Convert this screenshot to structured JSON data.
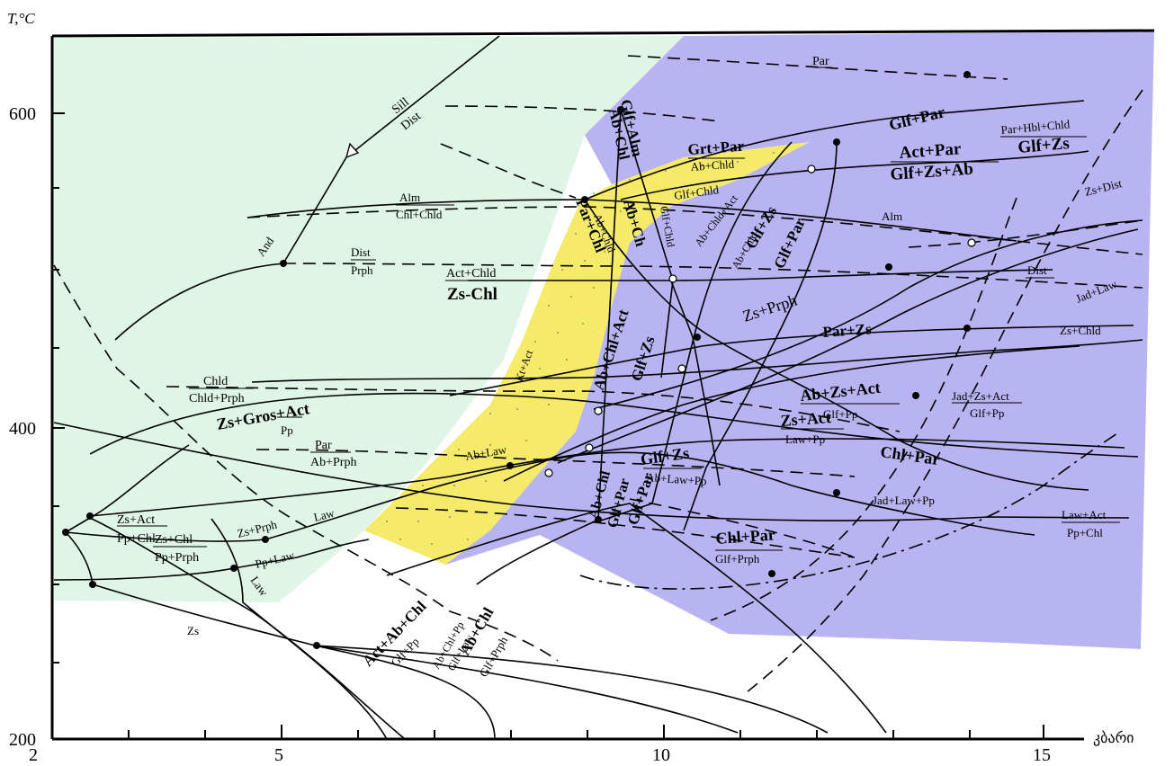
{
  "axes": {
    "y_label": "T,°C",
    "x_label": "კბარი",
    "y_ticks": [
      "600",
      "400",
      "200"
    ],
    "x_ticks": [
      "2",
      "5",
      "10",
      "15"
    ]
  },
  "colors": {
    "green_field": "#dff5e6",
    "yellow_field": "#f5ea6a",
    "purple_field": "#b8b4f1"
  },
  "labels": {
    "par_top": "Par",
    "glf_par_1": "Glf+Par",
    "par_hbl_chld": "Par+Hbl+Chld",
    "glf_zs_1": "Glf+Zs",
    "act_par": "Act+Par",
    "glf_zs_ab": "Glf+Zs+Ab",
    "grt_par": "Grt+Par",
    "ab_chld": "Ab+Chld",
    "glf_chld": "Glf+Chld",
    "glf_alm": "Glf+Alm",
    "ab_chl_v": "Ab+Chl",
    "sill": "Sill",
    "dist_1": "Dist",
    "alm_1": "Alm",
    "chl_chld": "Chl+Chld",
    "and": "And",
    "dist_2": "Dist",
    "prph": "Prph",
    "act_chld": "Act+Chld",
    "zs_chl": "Zs-Chl",
    "par_chl": "Par+Chl",
    "ab_chld_v": "Ab+Chld",
    "ab_ch": "Ab+Ch",
    "glf_chld_v": "Glf+Chld",
    "ab_chld_act": "Ab+Chld+Act",
    "ab_chld_2": "Ab+Chld",
    "glf_zs_v": "Glf+Zs",
    "glf_par_v": "Glf+Par",
    "alm_2": "Alm",
    "zs_dist": "Zs+Dist",
    "dist_3": "Dist",
    "jad_law": "Jad+Law",
    "zs_prph": "Zs+Prph",
    "par_zs": "Par+Zs",
    "zs_chld": "Zs+Chld",
    "kt_act": "Kt+Act",
    "ab_chl_act": "Ab+Chl+Act",
    "glf_zs_v2": "Glf+Zs",
    "chld": "Chld",
    "chld_prph": "Chld+Prph",
    "ab_zs_act": "Ab+Zs+Act",
    "glf_pp_1": "Glf+Pp",
    "jad_zs_act": "Jad+Zs+Act",
    "glf_pp_2": "Glf+Pp",
    "zs_gros_act": "Zs+Gros+Act",
    "pp_1": "Pp",
    "zs_act_1": "Zs+Act",
    "law_pp": "Law+Pp",
    "par_2": "Par",
    "ab_prph": "Ab+Prph",
    "chl_par_1": "Chl+Par",
    "ab_law": "Ab+Law",
    "glf_zs_2": "Glf+Zs",
    "ab_law_pp": "Ab+Law+Pp",
    "glf_par_2": "Glf+Par",
    "zs_act_2": "Zs+Act",
    "pp_chl_1": "Pp+Chl",
    "zs_prph_2": "Zs+Prph",
    "law_1": "Law",
    "jad_law_pp": "Jad+Law+Pp",
    "ab_chl_2": "Ab+Chl",
    "glf_par_3": "Glf+Par",
    "law_act": "Law+Act",
    "pp_chl_2": "Pp+Chl",
    "zs_chl_2": "Zs+Chl",
    "pp_prph": "Pp+Prph",
    "pp_law": "Pp+Law",
    "chl_par_2": "Chl+Par",
    "glf_prph_1": "Glf+Prph",
    "law_2": "Law",
    "act_ab_chl": "Act+Ab+Chl",
    "glf_pp_3": "Glf+Pp",
    "ab_chl_pp": "Ab+Chl+Pp",
    "glf_law": "Glf+Law",
    "ab_chl_3": "Ab+Chl",
    "glf_prph_2": "Glf+Prph",
    "zs": "Zs"
  }
}
